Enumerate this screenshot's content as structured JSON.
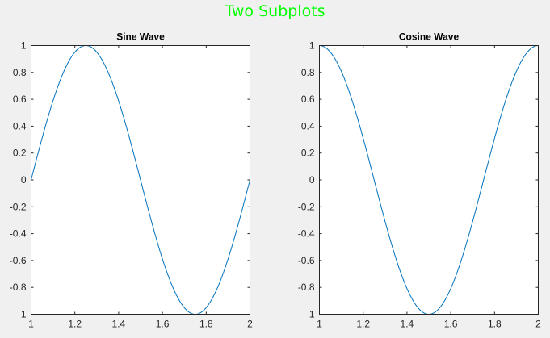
{
  "figure": {
    "suptitle": "Two Subplots",
    "suptitle_color": "#00ff00",
    "background": "#f0f0f0",
    "axes_color": "#262626",
    "line_color": "#0072bd"
  },
  "chart_data": [
    {
      "type": "line",
      "title": "Sine Wave",
      "xlabel": "",
      "ylabel": "",
      "function": "sin(2*pi*x)",
      "x": [
        1.0,
        1.05,
        1.1,
        1.15,
        1.2,
        1.25,
        1.3,
        1.35,
        1.4,
        1.45,
        1.5,
        1.55,
        1.6,
        1.65,
        1.7,
        1.75,
        1.8,
        1.85,
        1.9,
        1.95,
        2.0
      ],
      "series": [
        {
          "values": [
            0,
            0.309,
            0.588,
            0.809,
            0.951,
            1,
            0.951,
            0.809,
            0.588,
            0.309,
            0,
            -0.309,
            -0.588,
            -0.809,
            -0.951,
            -1,
            -0.951,
            -0.809,
            -0.588,
            -0.309,
            0
          ]
        }
      ],
      "xlim": [
        1,
        2
      ],
      "ylim": [
        -1,
        1
      ],
      "xticks": [
        "1",
        "1.2",
        "1.4",
        "1.6",
        "1.8",
        "2"
      ],
      "yticks": [
        "1",
        "0.8",
        "0.6",
        "0.4",
        "0.2",
        "0",
        "-0.2",
        "-0.4",
        "-0.6",
        "-0.8",
        "-1"
      ],
      "grid": false
    },
    {
      "type": "line",
      "title": "Cosine Wave",
      "xlabel": "",
      "ylabel": "",
      "function": "cos(2*pi*x)",
      "x": [
        1.0,
        1.05,
        1.1,
        1.15,
        1.2,
        1.25,
        1.3,
        1.35,
        1.4,
        1.45,
        1.5,
        1.55,
        1.6,
        1.65,
        1.7,
        1.75,
        1.8,
        1.85,
        1.9,
        1.95,
        2.0
      ],
      "series": [
        {
          "values": [
            1,
            0.951,
            0.809,
            0.588,
            0.309,
            0,
            -0.309,
            -0.588,
            -0.809,
            -0.951,
            -1,
            -0.951,
            -0.809,
            -0.588,
            -0.309,
            0,
            0.309,
            0.588,
            0.809,
            0.951,
            1
          ]
        }
      ],
      "xlim": [
        1,
        2
      ],
      "ylim": [
        -1,
        1
      ],
      "xticks": [
        "1",
        "1.2",
        "1.4",
        "1.6",
        "1.8",
        "2"
      ],
      "yticks": [
        "1",
        "0.8",
        "0.6",
        "0.4",
        "0.2",
        "0",
        "-0.2",
        "-0.4",
        "-0.6",
        "-0.8",
        "-1"
      ],
      "grid": false
    }
  ]
}
